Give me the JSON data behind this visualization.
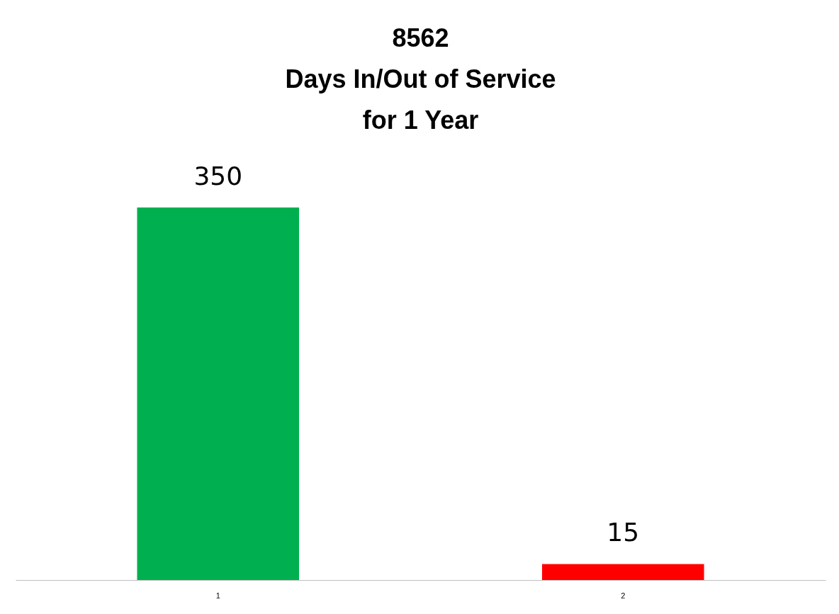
{
  "chart_data": {
    "type": "bar",
    "title": "8562\nDays In/Out of Service\nfor 1 Year",
    "categories": [
      "1",
      "2"
    ],
    "values": [
      350,
      15
    ],
    "colors": [
      "#00b050",
      "#ff0000"
    ],
    "data_labels": true
  }
}
